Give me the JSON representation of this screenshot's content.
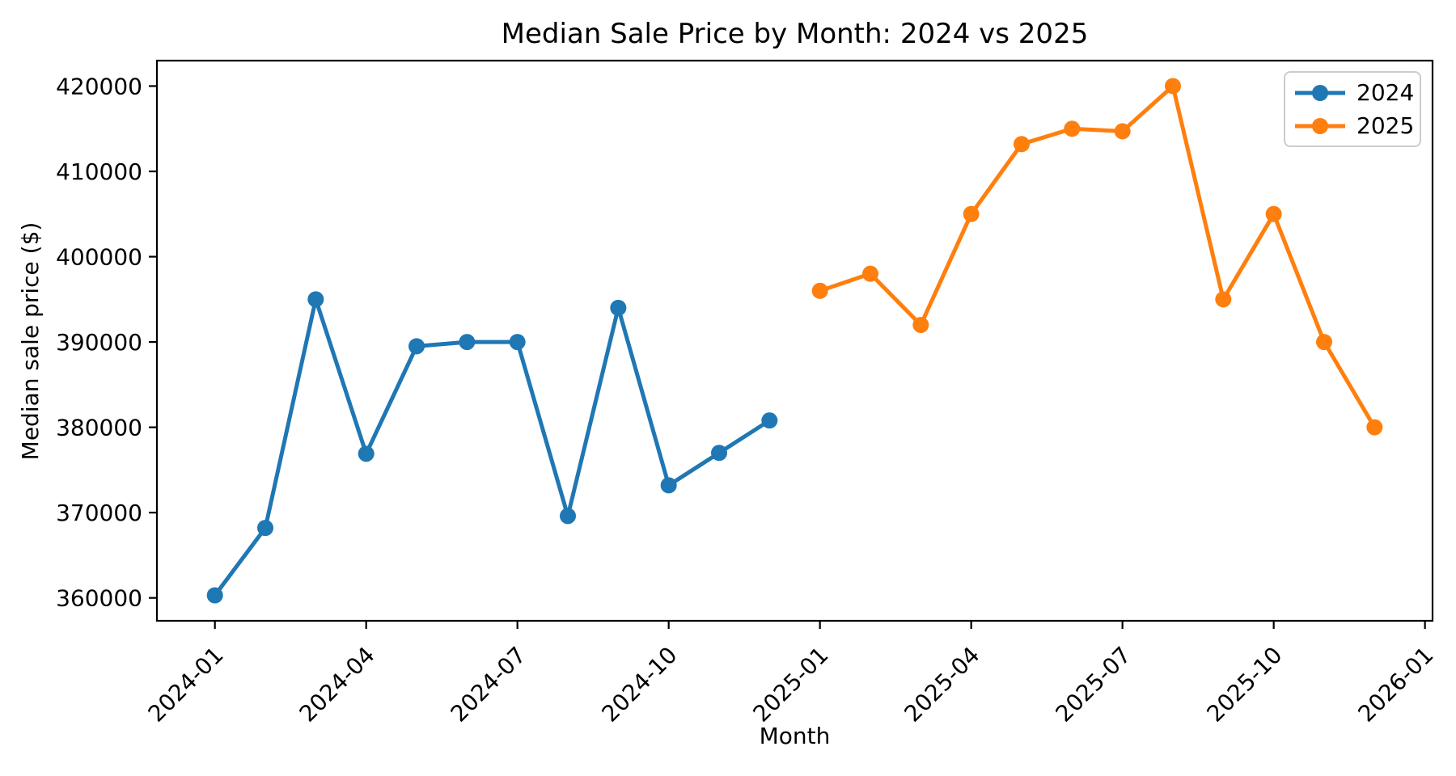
{
  "chart_data": {
    "type": "line",
    "title": "Median Sale Price by Month: 2024 vs 2025",
    "xlabel": "Month",
    "ylabel": "Median sale price ($)",
    "grid": false,
    "x_tick_labels": [
      "2024-01",
      "2024-04",
      "2024-07",
      "2024-10",
      "2025-01",
      "2025-04",
      "2025-07",
      "2025-10",
      "2026-01"
    ],
    "x_tick_months": [
      0,
      3,
      6,
      9,
      12,
      15,
      18,
      21,
      24
    ],
    "y_ticks": [
      360000,
      370000,
      380000,
      390000,
      400000,
      410000,
      420000
    ],
    "xlim_months": [
      -1.15,
      24.15
    ],
    "ylim": [
      357315,
      422985
    ],
    "series": [
      {
        "name": "2024",
        "color": "#1f77b4",
        "marker": "circle",
        "months": [
          "2024-01",
          "2024-02",
          "2024-03",
          "2024-04",
          "2024-05",
          "2024-06",
          "2024-07",
          "2024-08",
          "2024-09",
          "2024-10",
          "2024-11",
          "2024-12"
        ],
        "month_index": [
          0,
          1,
          2,
          3,
          4,
          5,
          6,
          7,
          8,
          9,
          10,
          11
        ],
        "values": [
          360300,
          368200,
          395000,
          376900,
          389500,
          390000,
          390000,
          369600,
          394000,
          373200,
          377000,
          380800
        ]
      },
      {
        "name": "2025",
        "color": "#ff7f0e",
        "marker": "circle",
        "months": [
          "2025-01",
          "2025-02",
          "2025-03",
          "2025-04",
          "2025-05",
          "2025-06",
          "2025-07",
          "2025-08",
          "2025-09",
          "2025-10",
          "2025-11",
          "2025-12"
        ],
        "month_index": [
          12,
          13,
          14,
          15,
          16,
          17,
          18,
          19,
          20,
          21,
          22,
          23
        ],
        "values": [
          396000,
          398000,
          392000,
          405000,
          413200,
          415000,
          414700,
          420000,
          395000,
          405000,
          390000,
          380000
        ]
      }
    ],
    "legend": {
      "position": "upper right",
      "entries": [
        {
          "label": "2024",
          "color": "#1f77b4"
        },
        {
          "label": "2025",
          "color": "#ff7f0e"
        }
      ]
    }
  }
}
